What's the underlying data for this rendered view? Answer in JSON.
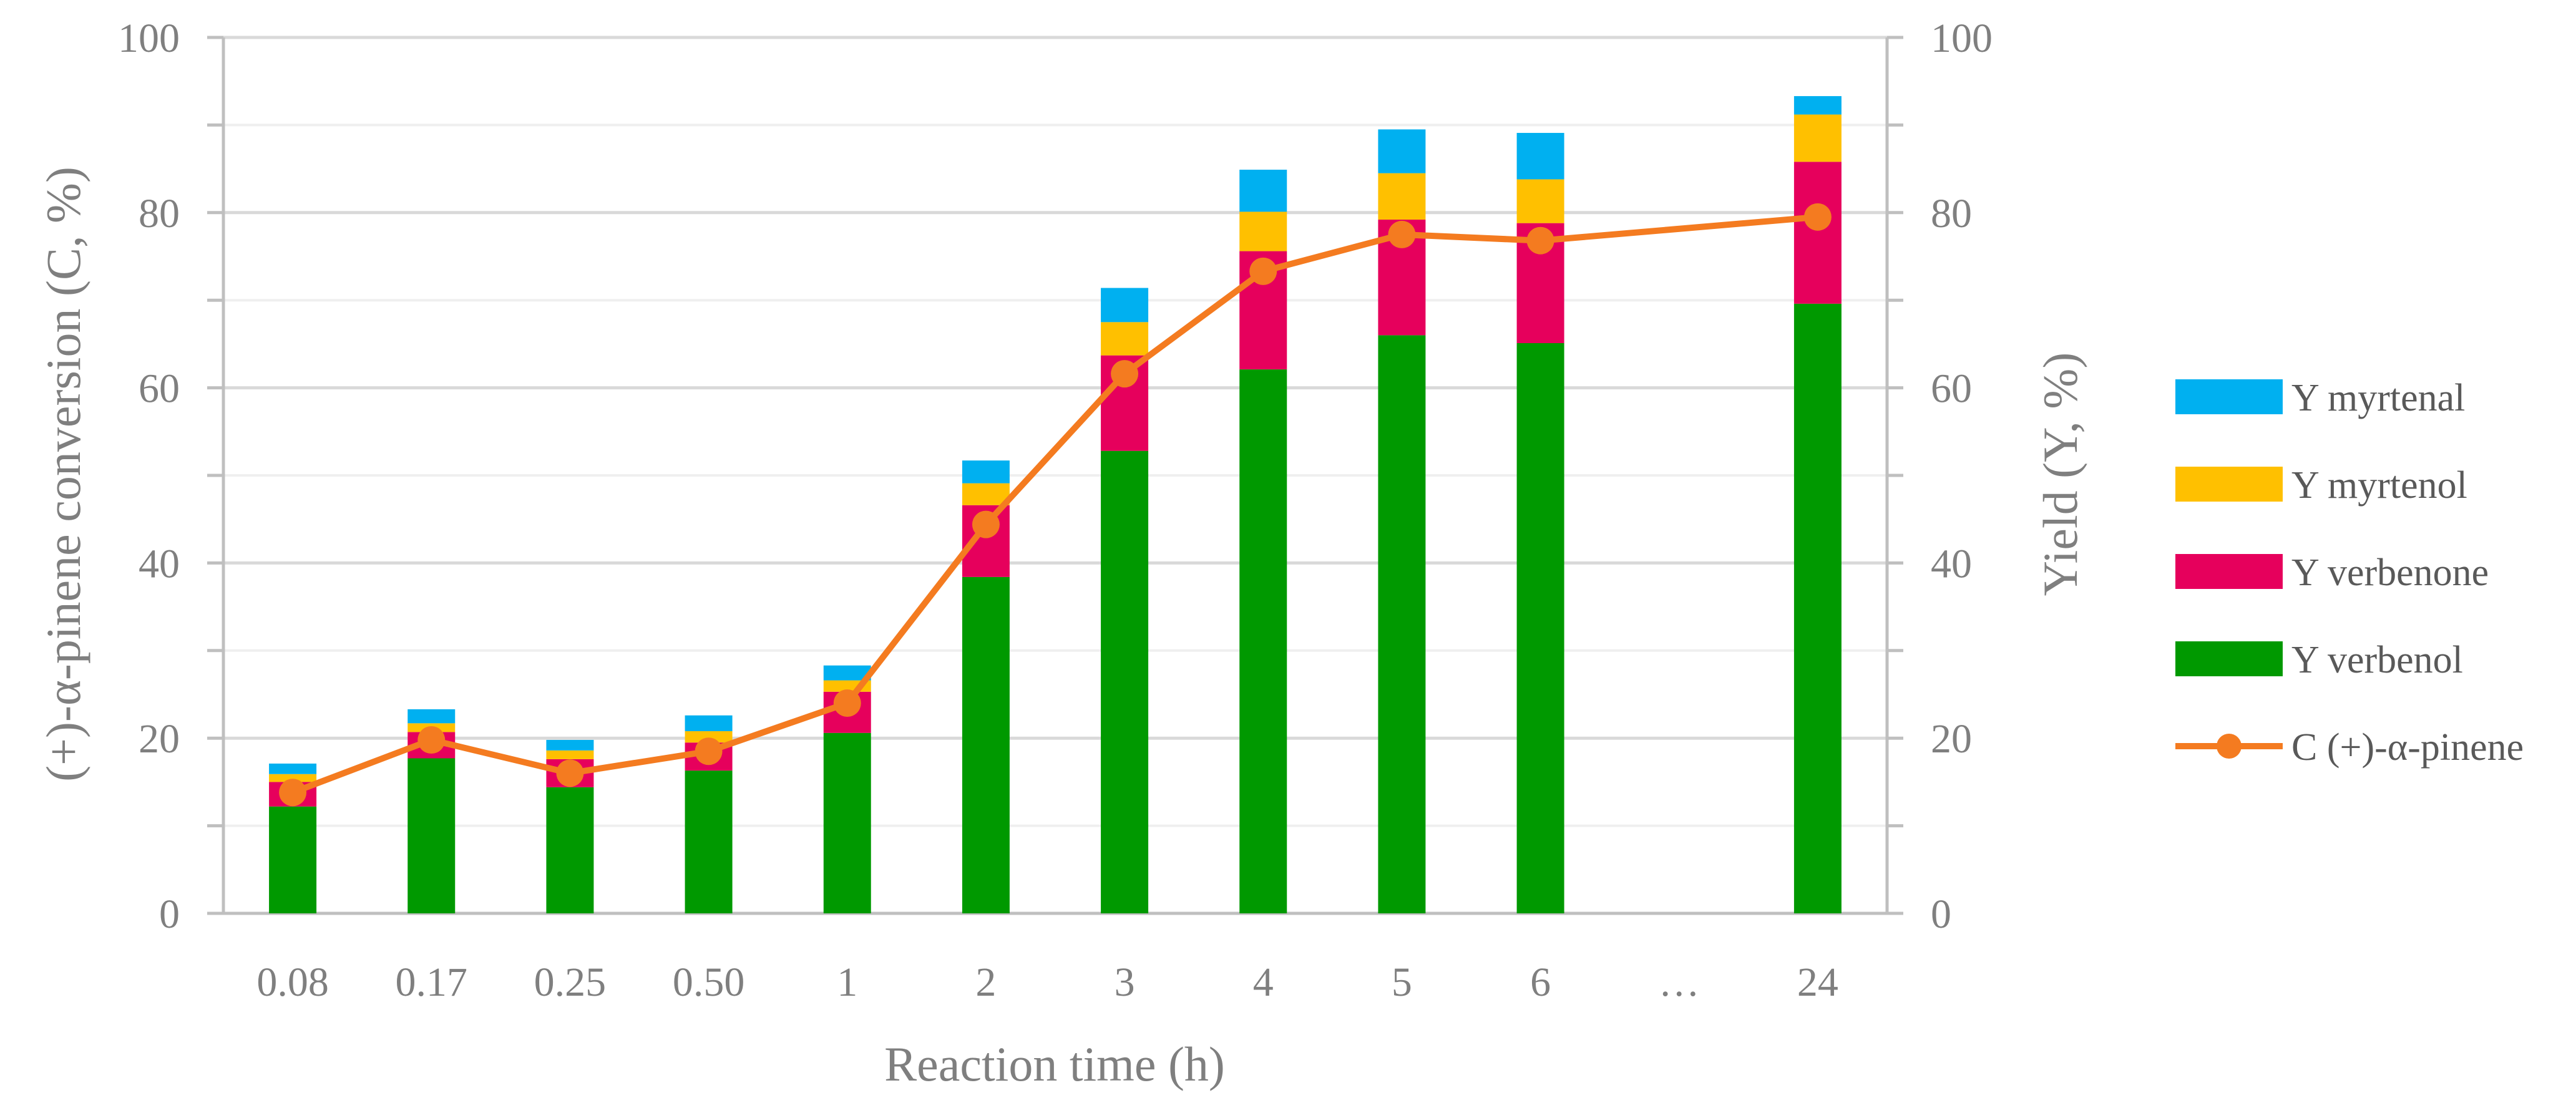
{
  "chart_data": {
    "type": "bar",
    "stacked": true,
    "categories": [
      "0.08",
      "0.17",
      "0.25",
      "0.50",
      "1",
      "2",
      "3",
      "4",
      "5",
      "6",
      "…",
      "24"
    ],
    "xlabel": "Reaction time (h)",
    "ylabel_left": "(+)-α-pinene conversion (C, %)",
    "ylabel_right": "Yield (Y, %)",
    "ylim": [
      0,
      100
    ],
    "y_ticks": [
      0,
      20,
      40,
      60,
      80,
      100
    ],
    "grid": true,
    "legend_position": "right",
    "series": [
      {
        "name": "Y verbenol",
        "color": "#009900",
        "values": [
          12.2,
          17.7,
          14.4,
          16.3,
          20.6,
          38.4,
          52.8,
          62.1,
          66.0,
          65.1,
          null,
          69.6
        ]
      },
      {
        "name": "Y verbenone",
        "color": "#e6005c",
        "values": [
          2.8,
          3.0,
          3.2,
          3.2,
          4.7,
          8.2,
          10.9,
          13.5,
          13.2,
          13.7,
          null,
          16.2
        ]
      },
      {
        "name": "Y myrtenol",
        "color": "#ffc000",
        "values": [
          0.9,
          1.0,
          1.0,
          1.3,
          1.3,
          2.5,
          3.8,
          4.5,
          5.3,
          5.0,
          null,
          5.4
        ]
      },
      {
        "name": "Y myrtenal",
        "color": "#00b0f0",
        "values": [
          1.2,
          1.6,
          1.2,
          1.8,
          1.7,
          2.6,
          3.9,
          4.8,
          5.0,
          5.3,
          null,
          2.1
        ]
      }
    ],
    "line": {
      "name": "C (+)-α-pinene",
      "color": "#f47b20",
      "values": [
        13.8,
        19.8,
        16.0,
        18.5,
        24.0,
        44.4,
        61.6,
        73.3,
        77.5,
        76.8,
        null,
        79.5
      ]
    },
    "legend": [
      {
        "label": "Y myrtenal",
        "color": "#00b0f0",
        "kind": "box"
      },
      {
        "label": "Y myrtenol",
        "color": "#ffc000",
        "kind": "box"
      },
      {
        "label": "Y verbenone",
        "color": "#e6005c",
        "kind": "box"
      },
      {
        "label": "Y verbenol",
        "color": "#009900",
        "kind": "box"
      },
      {
        "label": "C (+)-α-pinene",
        "color": "#f47b20",
        "kind": "line"
      }
    ]
  }
}
